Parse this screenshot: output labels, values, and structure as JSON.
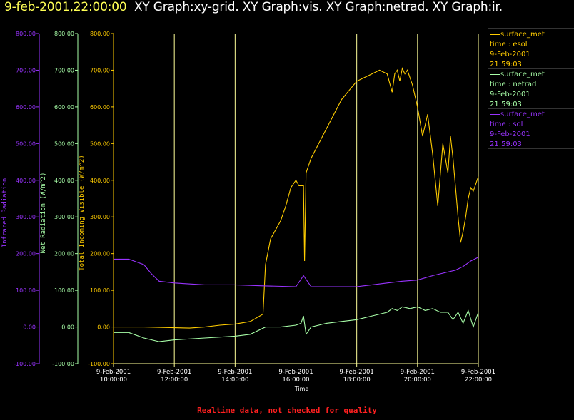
{
  "header": {
    "timestamp": "9-feb-2001,22:00:00",
    "graphs": "XY Graph:xy-grid.  XY Graph:vis.  XY Graph:netrad.  XY Graph:ir."
  },
  "footer_note": "Realtime data, not checked for quality",
  "colors": {
    "vis": "#ffcc00",
    "netrad": "#a8ffa8",
    "ir": "#9933ff",
    "grid": "#ffff99",
    "axis_x": "#ffff99",
    "footer": "#ff2020"
  },
  "legend": [
    {
      "name": "surface_met",
      "var": "time : esol",
      "date": "9-Feb-2001",
      "time": "21:59:03",
      "color": "#ffcc00"
    },
    {
      "name": "surface_met",
      "var": "time : netrad",
      "date": "9-Feb-2001",
      "time": "21:59:03",
      "color": "#a8ffa8"
    },
    {
      "name": "surface_met",
      "var": "time : sol",
      "date": "9-Feb-2001",
      "time": "21:59:03",
      "color": "#9933ff"
    }
  ],
  "chart_data": {
    "type": "line",
    "xlabel": "Time",
    "xlim": [
      "9-Feb-2001 10:00:00",
      "9-Feb-2001 22:00:00"
    ],
    "x_ticks": [
      {
        "date": "9-Feb-2001",
        "time": "10:00:00"
      },
      {
        "date": "9-Feb-2001",
        "time": "12:00:00"
      },
      {
        "date": "9-Feb-2001",
        "time": "14:00:00"
      },
      {
        "date": "9-Feb-2001",
        "time": "16:00:00"
      },
      {
        "date": "9-Feb-2001",
        "time": "18:00:00"
      },
      {
        "date": "9-Feb-2001",
        "time": "20:00:00"
      },
      {
        "date": "9-Feb-2001",
        "time": "22:00:00"
      }
    ],
    "grid": true,
    "axes": [
      {
        "id": "ir",
        "label": "Infrared Radiation",
        "ylim": [
          -100,
          800
        ],
        "ticks": [
          "800.00",
          "700.00",
          "600.00",
          "500.00",
          "400.00",
          "300.00",
          "200.00",
          "100.00",
          "0.00",
          "-100.00"
        ]
      },
      {
        "id": "netrad",
        "label": "Net Radiation (W/m^2)",
        "ylim": [
          -100,
          800
        ],
        "ticks": [
          "800.00",
          "700.00",
          "600.00",
          "500.00",
          "400.00",
          "300.00",
          "200.00",
          "100.00",
          "0.00",
          "-100.00"
        ]
      },
      {
        "id": "vis",
        "label": "Total Incoming Visible (W/m^2)",
        "ylim": [
          -100,
          800
        ],
        "ticks": [
          "800.00",
          "700.00",
          "600.00",
          "500.00",
          "400.00",
          "300.00",
          "200.00",
          "100.00",
          "0.00",
          "-100.00"
        ]
      }
    ],
    "series": [
      {
        "name": "surface_met",
        "axis": "vis",
        "x": [
          "10:00",
          "11:00",
          "12:00",
          "12:30",
          "13:00",
          "13:30",
          "14:00",
          "14:30",
          "14:55",
          "15:00",
          "15:10",
          "15:30",
          "15:40",
          "15:50",
          "16:00",
          "16:06",
          "16:15",
          "16:17",
          "16:20",
          "16:25",
          "16:30",
          "17:00",
          "17:30",
          "18:00",
          "18:30",
          "18:45",
          "19:00",
          "19:10",
          "19:15",
          "19:20",
          "19:25",
          "19:30",
          "19:35",
          "19:40",
          "19:50",
          "20:00",
          "20:10",
          "20:20",
          "20:30",
          "20:40",
          "20:50",
          "21:00",
          "21:05",
          "21:10",
          "21:15",
          "21:20",
          "21:25",
          "21:30",
          "21:35",
          "21:40",
          "21:45",
          "21:50",
          "21:55",
          "22:00"
        ],
        "y": [
          0,
          0,
          -2,
          -3,
          0,
          5,
          8,
          15,
          35,
          170,
          240,
          290,
          330,
          380,
          400,
          385,
          385,
          180,
          420,
          440,
          460,
          540,
          620,
          670,
          690,
          700,
          690,
          640,
          690,
          700,
          670,
          705,
          690,
          700,
          660,
          600,
          520,
          580,
          470,
          330,
          500,
          420,
          520,
          460,
          380,
          300,
          230,
          260,
          300,
          350,
          380,
          370,
          390,
          410
        ]
      },
      {
        "name": "surface_met",
        "axis": "netrad",
        "x": [
          "10:00",
          "10:30",
          "11:00",
          "11:30",
          "12:00",
          "13:00",
          "14:00",
          "14:30",
          "15:00",
          "15:30",
          "16:00",
          "16:10",
          "16:15",
          "16:20",
          "16:30",
          "17:00",
          "17:30",
          "18:00",
          "18:30",
          "19:00",
          "19:10",
          "19:20",
          "19:30",
          "19:45",
          "20:00",
          "20:15",
          "20:30",
          "20:45",
          "21:00",
          "21:10",
          "21:20",
          "21:30",
          "21:40",
          "21:50",
          "22:00"
        ],
        "y": [
          -15,
          -15,
          -30,
          -40,
          -35,
          -30,
          -25,
          -20,
          0,
          0,
          5,
          10,
          30,
          -20,
          0,
          10,
          15,
          20,
          30,
          40,
          50,
          45,
          55,
          50,
          55,
          45,
          50,
          40,
          40,
          20,
          40,
          10,
          45,
          0,
          40
        ]
      },
      {
        "name": "surface_met",
        "axis": "ir",
        "x": [
          "10:00",
          "10:30",
          "11:00",
          "11:15",
          "11:30",
          "12:00",
          "13:00",
          "14:00",
          "15:00",
          "16:00",
          "16:15",
          "16:30",
          "17:00",
          "18:00",
          "18:30",
          "19:00",
          "19:30",
          "20:00",
          "20:30",
          "21:00",
          "21:15",
          "21:30",
          "21:45",
          "22:00"
        ],
        "y": [
          185,
          185,
          170,
          145,
          125,
          120,
          115,
          115,
          112,
          110,
          140,
          110,
          110,
          110,
          115,
          120,
          125,
          128,
          140,
          150,
          155,
          165,
          180,
          190
        ]
      }
    ]
  }
}
